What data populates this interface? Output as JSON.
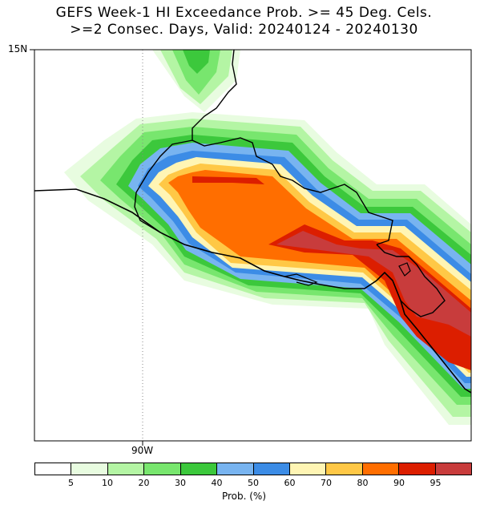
{
  "title": {
    "line1": "GEFS Week-1 HI Exceedance Prob. >= 45 Deg. Cels.",
    "line2": ">=2 Consec. Days, Valid: 20240124 - 20240130"
  },
  "axes": {
    "lat_label": "15N",
    "lon_label": "90W"
  },
  "colorbar": {
    "unit_label": "Prob. (%)",
    "ticks": [
      "5",
      "10",
      "20",
      "30",
      "40",
      "50",
      "60",
      "70",
      "80",
      "90",
      "95"
    ],
    "colors": [
      "#ffffff",
      "#e8fce0",
      "#b4f5a4",
      "#78e66e",
      "#3cc83c",
      "#78b4f0",
      "#3c8ce6",
      "#fff5b4",
      "#ffc846",
      "#ff6e00",
      "#dc1e00",
      "#c83c3c"
    ]
  },
  "shading_levels": {
    "5": "#e8fce0",
    "10": "#b4f5a4",
    "20": "#78e66e",
    "30": "#3cc83c",
    "40": "#78b4f0",
    "50": "#3c8ce6",
    "60": "#fff5b4",
    "70": "#ffc846",
    "80": "#ff6e00",
    "90": "#dc1e00",
    "95": "#c83c3c"
  }
}
